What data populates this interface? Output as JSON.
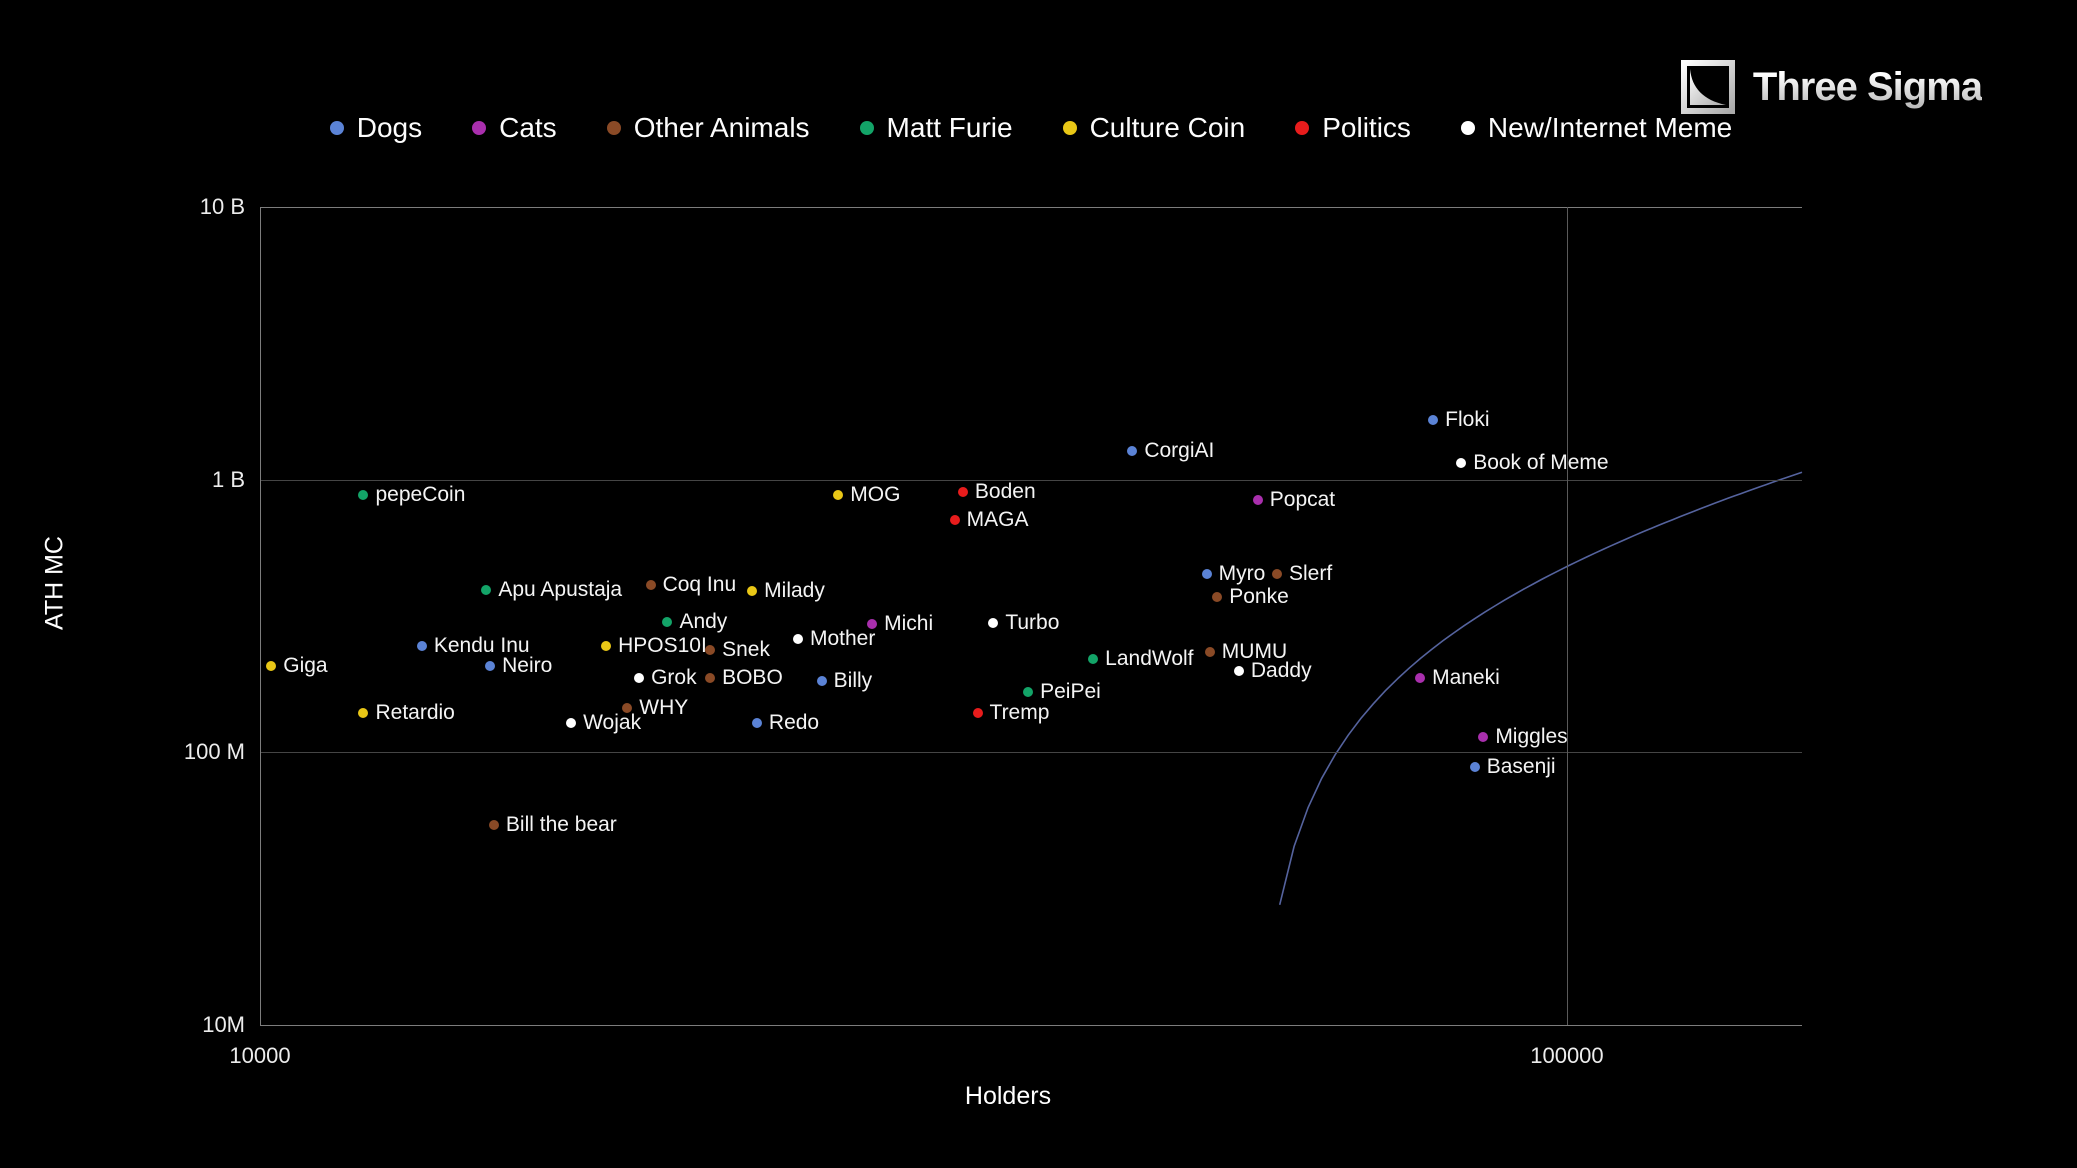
{
  "header": {
    "brand_name": "Three Sigma"
  },
  "chart_data": {
    "type": "scatter",
    "xlabel": "Holders",
    "ylabel": "ATH MC",
    "x_scale": "log",
    "y_scale": "log",
    "xlim": [
      10000,
      151300
    ],
    "ylim": [
      10000000,
      10000000000
    ],
    "x_ticks": [
      {
        "value": 10000,
        "label": "10000"
      },
      {
        "value": 100000,
        "label": "100000"
      }
    ],
    "y_ticks": [
      {
        "value": 10000000000,
        "label": "10 B"
      },
      {
        "value": 1000000000,
        "label": "1 B"
      },
      {
        "value": 100000000,
        "label": "100 M"
      },
      {
        "value": 10000000,
        "label": "10M"
      }
    ],
    "legend": [
      {
        "label": "Dogs",
        "color": "#5b83d6"
      },
      {
        "label": "Cats",
        "color": "#a92fad"
      },
      {
        "label": "Other Animals",
        "color": "#8a4a26"
      },
      {
        "label": "Matt Furie",
        "color": "#13a468"
      },
      {
        "label": "Culture Coin",
        "color": "#e9c716"
      },
      {
        "label": "Politics",
        "color": "#e81c1c"
      },
      {
        "label": "New/Internet Meme",
        "color": "#ffffff"
      }
    ],
    "points": [
      {
        "name": "Floki",
        "category": "Dogs",
        "holders": 79000,
        "ath_mc": 1650000000
      },
      {
        "name": "Book of Meme",
        "category": "New/Internet Meme",
        "holders": 83000,
        "ath_mc": 1150000000
      },
      {
        "name": "CorgiAI",
        "category": "Dogs",
        "holders": 46500,
        "ath_mc": 1270000000
      },
      {
        "name": "pepeCoin",
        "category": "Matt Furie",
        "holders": 12000,
        "ath_mc": 880000000
      },
      {
        "name": "MOG",
        "category": "Culture Coin",
        "holders": 27700,
        "ath_mc": 880000000
      },
      {
        "name": "Boden",
        "category": "Politics",
        "holders": 34500,
        "ath_mc": 900000000
      },
      {
        "name": "MAGA",
        "category": "Politics",
        "holders": 34000,
        "ath_mc": 710000000
      },
      {
        "name": "Popcat",
        "category": "Cats",
        "holders": 58000,
        "ath_mc": 840000000
      },
      {
        "name": "Myro",
        "category": "Dogs",
        "holders": 53000,
        "ath_mc": 450000000
      },
      {
        "name": "Slerf",
        "category": "Other Animals",
        "holders": 60000,
        "ath_mc": 450000000
      },
      {
        "name": "Ponke",
        "category": "Other Animals",
        "holders": 54000,
        "ath_mc": 370000000
      },
      {
        "name": "Apu Apustaja",
        "category": "Matt Furie",
        "holders": 14900,
        "ath_mc": 395000000
      },
      {
        "name": "Coq Inu",
        "category": "Other Animals",
        "holders": 19900,
        "ath_mc": 410000000
      },
      {
        "name": "Milady",
        "category": "Culture Coin",
        "holders": 23800,
        "ath_mc": 390000000
      },
      {
        "name": "Andy",
        "category": "Matt Furie",
        "holders": 20500,
        "ath_mc": 300000000
      },
      {
        "name": "Michi",
        "category": "Cats",
        "holders": 29400,
        "ath_mc": 295000000
      },
      {
        "name": "Turbo",
        "category": "New/Internet Meme",
        "holders": 36400,
        "ath_mc": 297000000
      },
      {
        "name": "Kendu Inu",
        "category": "Dogs",
        "holders": 13300,
        "ath_mc": 245000000
      },
      {
        "name": "HPOS10I",
        "category": "Culture Coin",
        "holders": 18400,
        "ath_mc": 245000000
      },
      {
        "name": "Snek",
        "category": "Other Animals",
        "holders": 22100,
        "ath_mc": 237000000
      },
      {
        "name": "Mother",
        "category": "New/Internet Meme",
        "holders": 25800,
        "ath_mc": 260000000
      },
      {
        "name": "Neiro",
        "category": "Dogs",
        "holders": 15000,
        "ath_mc": 207000000
      },
      {
        "name": "Giga",
        "category": "Culture Coin",
        "holders": 10200,
        "ath_mc": 207000000
      },
      {
        "name": "Grok",
        "category": "New/Internet Meme",
        "holders": 19500,
        "ath_mc": 187000000
      },
      {
        "name": "BOBO",
        "category": "Other Animals",
        "holders": 22100,
        "ath_mc": 187000000
      },
      {
        "name": "Billy",
        "category": "Dogs",
        "holders": 26900,
        "ath_mc": 183000000
      },
      {
        "name": "LandWolf",
        "category": "Matt Furie",
        "holders": 43400,
        "ath_mc": 220000000
      },
      {
        "name": "MUMU",
        "category": "Other Animals",
        "holders": 53300,
        "ath_mc": 234000000
      },
      {
        "name": "Daddy",
        "category": "New/Internet Meme",
        "holders": 56100,
        "ath_mc": 198000000
      },
      {
        "name": "PeiPei",
        "category": "Matt Furie",
        "holders": 38700,
        "ath_mc": 166000000
      },
      {
        "name": "WHY",
        "category": "Other Animals",
        "holders": 19100,
        "ath_mc": 145000000
      },
      {
        "name": "Retardio",
        "category": "Culture Coin",
        "holders": 12000,
        "ath_mc": 139000000
      },
      {
        "name": "Wojak",
        "category": "New/Internet Meme",
        "holders": 17300,
        "ath_mc": 128000000
      },
      {
        "name": "Redo",
        "category": "Dogs",
        "holders": 24000,
        "ath_mc": 128000000
      },
      {
        "name": "Tremp",
        "category": "Politics",
        "holders": 35400,
        "ath_mc": 139000000
      },
      {
        "name": "Maneki",
        "category": "Cats",
        "holders": 77200,
        "ath_mc": 187000000
      },
      {
        "name": "Miggles",
        "category": "Cats",
        "holders": 86300,
        "ath_mc": 114000000
      },
      {
        "name": "Basenji",
        "category": "Dogs",
        "holders": 85000,
        "ath_mc": 88000000
      },
      {
        "name": "Bill the bear",
        "category": "Other Animals",
        "holders": 15100,
        "ath_mc": 54000000
      }
    ],
    "trend_curve": {
      "type": "linear-in-linear-space",
      "slope_mc_per_holder": 11400,
      "holders_intercept": 57870,
      "color": "#55639e"
    },
    "style": {
      "background": "#000000",
      "border_color": "#7d7d7d",
      "grid_color": "#454545",
      "vgrid_color": "#5a5a5a"
    }
  }
}
